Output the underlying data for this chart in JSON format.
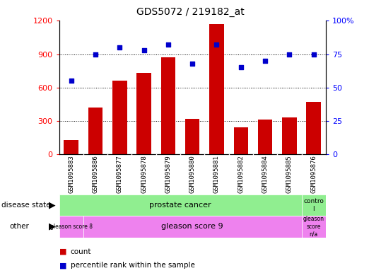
{
  "title": "GDS5072 / 219182_at",
  "samples": [
    "GSM1095883",
    "GSM1095886",
    "GSM1095877",
    "GSM1095878",
    "GSM1095879",
    "GSM1095880",
    "GSM1095881",
    "GSM1095882",
    "GSM1095884",
    "GSM1095885",
    "GSM1095876"
  ],
  "counts": [
    130,
    420,
    660,
    730,
    870,
    320,
    1170,
    240,
    310,
    330,
    470
  ],
  "percentiles": [
    55,
    75,
    80,
    78,
    82,
    68,
    82,
    65,
    70,
    75,
    75
  ],
  "bar_color": "#cc0000",
  "dot_color": "#0000cc",
  "ylim_left": [
    0,
    1200
  ],
  "ylim_right": [
    0,
    100
  ],
  "yticks_left": [
    0,
    300,
    600,
    900,
    1200
  ],
  "yticks_right": [
    0,
    25,
    50,
    75,
    100
  ],
  "background_color": "#ffffff",
  "tick_label_area_color": "#d3d3d3",
  "green_color": "#90ee90",
  "magenta_color": "#ee82ee"
}
